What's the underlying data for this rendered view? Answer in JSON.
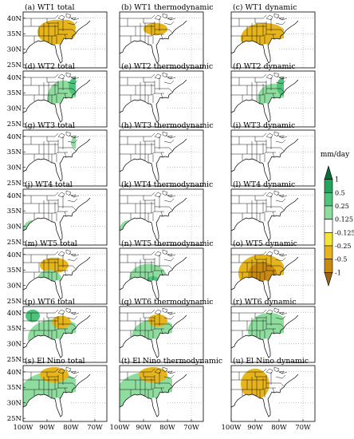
{
  "figure": {
    "colorbar": {
      "unit_label": "mm/day",
      "ticks": [
        "1",
        "0.5",
        "0.25",
        "0.125",
        "-0.125",
        "-0.25",
        "-0.5",
        "-1"
      ],
      "colors": [
        "#0b6b3a",
        "#23a35b",
        "#4fc27c",
        "#8fdc9f",
        "#ffffff",
        "#f3e43c",
        "#e6b51d",
        "#c98a12",
        "#9c6415"
      ]
    },
    "y_ticks": [
      "40N",
      "35N",
      "30N",
      "25N"
    ],
    "x_ticks": [
      "100W",
      "90W",
      "80W",
      "70W"
    ]
  },
  "chart_data": {
    "type": "heatmap",
    "description_unit": "mm/day",
    "columns": [
      "total",
      "thermodynamic",
      "dynamic"
    ],
    "rows": [
      "WT1",
      "WT2",
      "WT3",
      "WT4",
      "WT5",
      "WT6",
      "El Nino"
    ],
    "panels": [
      {
        "label": "(a) WT1 total",
        "row": 0,
        "col": 0,
        "blobs": [
          {
            "lon": -86,
            "lat": 35.5,
            "rx": 8,
            "ry": 4,
            "v": -0.2
          },
          {
            "lon": -82,
            "lat": 37,
            "rx": 4,
            "ry": 2.5,
            "v": -0.35
          }
        ]
      },
      {
        "label": "(b) WT1 thermodynamic",
        "row": 0,
        "col": 1,
        "blobs": [
          {
            "lon": -85,
            "lat": 36.5,
            "rx": 5,
            "ry": 2,
            "v": -0.2
          },
          {
            "lon": -97,
            "lat": 27,
            "rx": 3,
            "ry": 2,
            "v": 0.15
          }
        ]
      },
      {
        "label": "(c) WT1 dynamic",
        "row": 0,
        "col": 2,
        "blobs": [
          {
            "lon": -86,
            "lat": 33.5,
            "rx": 10,
            "ry": 5,
            "v": -0.2
          },
          {
            "lon": -83,
            "lat": 36,
            "rx": 4,
            "ry": 2,
            "v": -0.3
          }
        ]
      },
      {
        "label": "(d) WT2 total",
        "row": 1,
        "col": 0,
        "blobs": [
          {
            "lon": -83,
            "lat": 33,
            "rx": 7,
            "ry": 6,
            "v": 0.15
          },
          {
            "lon": -78,
            "lat": 37,
            "rx": 3,
            "ry": 3,
            "v": 0.3
          }
        ]
      },
      {
        "label": "(e) WT2 thermodynamic",
        "row": 1,
        "col": 1,
        "blobs": [
          {
            "lon": -82,
            "lat": 29,
            "rx": 2.5,
            "ry": 2,
            "v": 0.15
          }
        ]
      },
      {
        "label": "(f) WT2 dynamic",
        "row": 1,
        "col": 2,
        "blobs": [
          {
            "lon": -82,
            "lat": 33,
            "rx": 7,
            "ry": 5,
            "v": 0.15
          },
          {
            "lon": -78,
            "lat": 37,
            "rx": 3,
            "ry": 3,
            "v": 0.3
          }
        ]
      },
      {
        "label": "(g) WT3 total",
        "row": 2,
        "col": 0,
        "blobs": [
          {
            "lon": -98,
            "lat": 27,
            "rx": 2.5,
            "ry": 2.5,
            "v": 0.15
          },
          {
            "lon": -78,
            "lat": 38,
            "rx": 2,
            "ry": 2,
            "v": 0.15
          }
        ]
      },
      {
        "label": "(h) WT3 thermodynamic",
        "row": 2,
        "col": 1,
        "blobs": []
      },
      {
        "label": "(i) WT3 dynamic",
        "row": 2,
        "col": 2,
        "blobs": []
      },
      {
        "label": "(j) WT4 total",
        "row": 3,
        "col": 0,
        "blobs": [
          {
            "lon": -96,
            "lat": 29,
            "rx": 4,
            "ry": 3,
            "v": 0.15
          }
        ]
      },
      {
        "label": "(k) WT4 thermodynamic",
        "row": 3,
        "col": 1,
        "blobs": [
          {
            "lon": -96,
            "lat": 29,
            "rx": 4,
            "ry": 3,
            "v": 0.15
          }
        ]
      },
      {
        "label": "(l) WT4 dynamic",
        "row": 3,
        "col": 2,
        "blobs": []
      },
      {
        "label": "(m) WT5 total",
        "row": 4,
        "col": 0,
        "blobs": [
          {
            "lon": -87,
            "lat": 36.5,
            "rx": 6,
            "ry": 2.5,
            "v": -0.2
          },
          {
            "lon": -89,
            "lat": 32,
            "rx": 5,
            "ry": 3,
            "v": 0.15
          }
        ]
      },
      {
        "label": "(n) WT5 thermodynamic",
        "row": 4,
        "col": 1,
        "blobs": [
          {
            "lon": -88,
            "lat": 32,
            "rx": 8,
            "ry": 5,
            "v": 0.15
          },
          {
            "lon": -86,
            "lat": 31,
            "rx": 3,
            "ry": 2,
            "v": 0.3
          }
        ]
      },
      {
        "label": "(o) WT5 dynamic",
        "row": 4,
        "col": 2,
        "blobs": [
          {
            "lon": -87,
            "lat": 34,
            "rx": 10,
            "ry": 6,
            "v": -0.3
          },
          {
            "lon": -87,
            "lat": 33.5,
            "rx": 6,
            "ry": 4,
            "v": -0.6
          }
        ]
      },
      {
        "label": "(p) WT6 total",
        "row": 5,
        "col": 0,
        "blobs": [
          {
            "lon": -86,
            "lat": 32,
            "rx": 12,
            "ry": 6,
            "v": 0.15
          },
          {
            "lon": -84,
            "lat": 37,
            "rx": 4,
            "ry": 2,
            "v": -0.2
          },
          {
            "lon": -96,
            "lat": 39,
            "rx": 3,
            "ry": 2,
            "v": 0.3
          }
        ]
      },
      {
        "label": "(q) WT6 thermodynamic",
        "row": 5,
        "col": 1,
        "blobs": [
          {
            "lon": -85,
            "lat": 32,
            "rx": 10,
            "ry": 6,
            "v": 0.15
          },
          {
            "lon": -84,
            "lat": 37.5,
            "rx": 4,
            "ry": 2,
            "v": -0.3
          }
        ]
      },
      {
        "label": "(r) WT6 dynamic",
        "row": 5,
        "col": 2,
        "blobs": [
          {
            "lon": -84,
            "lat": 34,
            "rx": 9,
            "ry": 6,
            "v": 0.15
          }
        ]
      },
      {
        "label": "(s) El Nino total",
        "row": 6,
        "col": 0,
        "blobs": [
          {
            "lon": -88,
            "lat": 32,
            "rx": 14,
            "ry": 8,
            "v": 0.15
          },
          {
            "lon": -83,
            "lat": 29,
            "rx": 4,
            "ry": 3,
            "v": 0.4
          },
          {
            "lon": -82,
            "lat": 27,
            "rx": 2,
            "ry": 2,
            "v": 0.8
          },
          {
            "lon": -87,
            "lat": 39,
            "rx": 6,
            "ry": 2.5,
            "v": -0.3
          }
        ]
      },
      {
        "label": "(t) El Nino thermodynamic",
        "row": 6,
        "col": 1,
        "blobs": [
          {
            "lon": -88,
            "lat": 32,
            "rx": 14,
            "ry": 8,
            "v": 0.15
          },
          {
            "lon": -83,
            "lat": 29,
            "rx": 4,
            "ry": 3,
            "v": 0.4
          },
          {
            "lon": -82,
            "lat": 27,
            "rx": 2,
            "ry": 2,
            "v": 0.8
          },
          {
            "lon": -86,
            "lat": 39,
            "rx": 6,
            "ry": 2.5,
            "v": -0.3
          }
        ]
      },
      {
        "label": "(u) El Nino dynamic",
        "row": 6,
        "col": 2,
        "blobs": [
          {
            "lon": -90,
            "lat": 36,
            "rx": 6,
            "ry": 5,
            "v": -0.2
          }
        ]
      }
    ],
    "xlim": [
      -100,
      -65
    ],
    "ylim": [
      24,
      42
    ]
  }
}
